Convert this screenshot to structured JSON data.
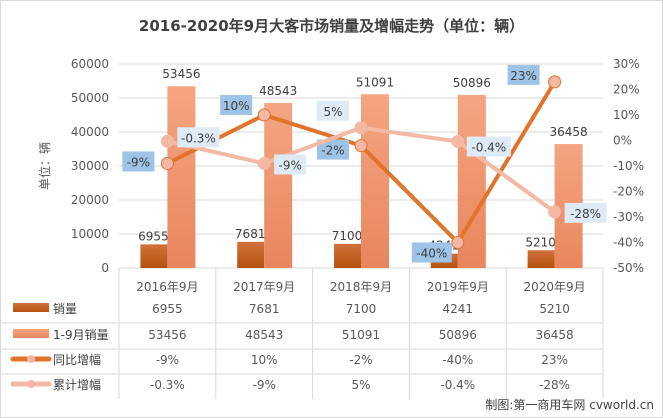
{
  "chart_data": {
    "type": "bar+line",
    "title": "2016-2020年9月大客市场销量及增幅走势（单位：辆）",
    "ylabel": "单位：辆",
    "categories": [
      "2016年9月",
      "2017年9月",
      "2018年9月",
      "2019年9月",
      "2020年9月"
    ],
    "ylim": [
      0,
      60000
    ],
    "yticks": [
      "0",
      "10000",
      "20000",
      "30000",
      "40000",
      "50000",
      "60000"
    ],
    "y2lim": [
      -50,
      30
    ],
    "y2ticks": [
      "-50%",
      "-40%",
      "-30%",
      "-20%",
      "-10%",
      "0%",
      "10%",
      "20%",
      "30%"
    ],
    "grid": true,
    "legend": "data-table",
    "series": [
      {
        "name": "销量",
        "type": "bar",
        "axis": "left",
        "values": [
          6955,
          7681,
          7100,
          4241,
          5210
        ],
        "labels": [
          "6955",
          "7681",
          "7100",
          "4241",
          "5210"
        ],
        "color": "#c55a11"
      },
      {
        "name": "1-9月销量",
        "type": "bar",
        "axis": "left",
        "values": [
          53456,
          48543,
          51091,
          50896,
          36458
        ],
        "labels": [
          "53456",
          "48543",
          "51091",
          "50896",
          "36458"
        ],
        "color": "#f4a07a"
      },
      {
        "name": "同比增幅",
        "type": "line",
        "axis": "right",
        "values": [
          -9,
          10,
          -2,
          -40,
          23
        ],
        "labels": [
          "-9%",
          "10%",
          "-2%",
          "-40%",
          "23%"
        ],
        "color": "#e0742c",
        "label_bg": "#9dc3e6"
      },
      {
        "name": "累计增幅",
        "type": "line",
        "axis": "right",
        "values": [
          -0.3,
          -9,
          5,
          -0.4,
          -28
        ],
        "labels": [
          "-0.3%",
          "-9%",
          "5%",
          "-0.4%",
          "-28%"
        ],
        "color": "#f4b9a4",
        "label_bg": "#deebf7"
      }
    ]
  },
  "footer": "制图:第一商用车网 cvworld.cn"
}
